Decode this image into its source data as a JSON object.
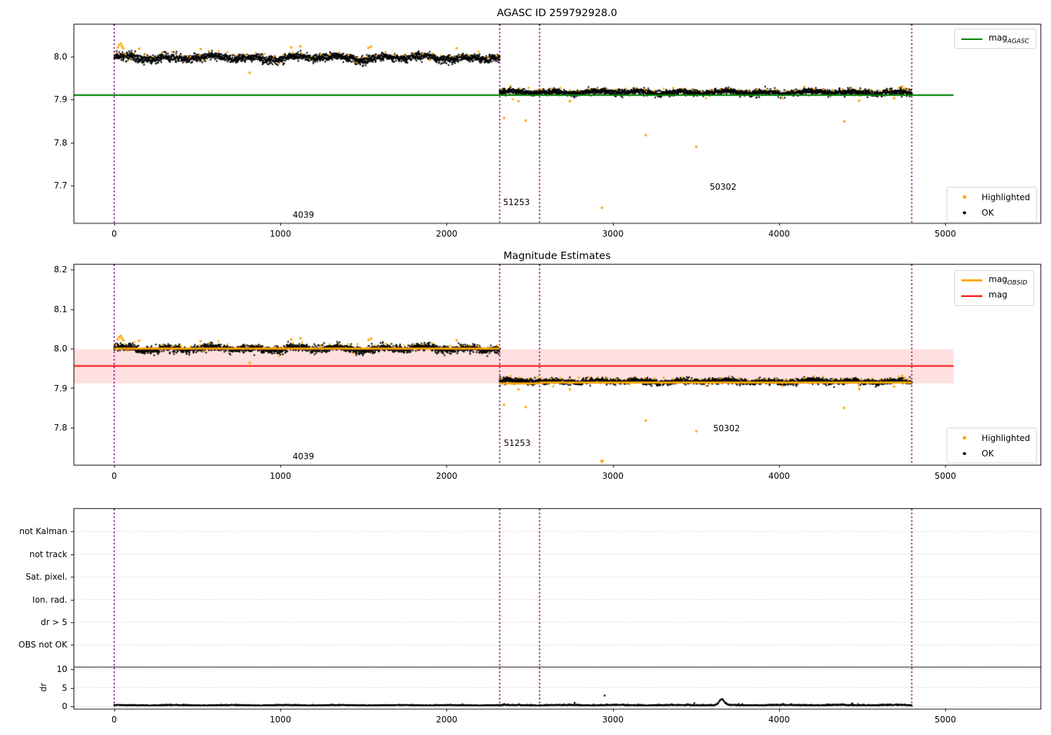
{
  "colors": {
    "ok": "#000000",
    "highlighted": "#ffa500",
    "mag_agasc": "#008000",
    "mag_obsid": "#ffa500",
    "mag": "#ff0000",
    "mag_band": "rgba(255,0,0,0.12)",
    "obs_boundary": "#800080",
    "flag_grid": "#c8c8c8",
    "separator": "#000000",
    "spine": "#000000",
    "text": "#000000"
  },
  "chart_data": [
    {
      "type": "scatter",
      "title": "AGASC ID 259792928.0",
      "xlim": [
        -245,
        5575
      ],
      "ylim": [
        7.613,
        8.076
      ],
      "xticks": [
        0,
        1000,
        2000,
        3000,
        4000,
        5000
      ],
      "yticks": [
        "8.0",
        "7.9",
        "7.8",
        "7.7"
      ],
      "ytick_values": [
        8.0,
        7.9,
        7.8,
        7.7
      ],
      "grid": false,
      "obs_boundaries_x": [
        0,
        2319,
        2559,
        4798
      ],
      "mag_agasc_line": {
        "y": 7.91,
        "x_extent": [
          -245,
          5050
        ]
      },
      "segments": [
        {
          "obsid": "4039",
          "x_range": [
            0,
            2319
          ],
          "mag_mean": 7.997,
          "noise": 0.0045,
          "wiggle": 0.0035,
          "n": 2200,
          "seed": 11
        },
        {
          "obsid": "51253",
          "x_range": [
            2319,
            2559
          ],
          "mag_mean": 7.9165,
          "noise": 0.0035,
          "wiggle": 0.002,
          "n": 235,
          "seed": 22
        },
        {
          "obsid": "50302",
          "x_range": [
            2559,
            4798
          ],
          "mag_mean": 7.9165,
          "noise": 0.0035,
          "wiggle": 0.002,
          "n": 2100,
          "seed": 33
        }
      ],
      "highlighted_outliers": [
        [
          22,
          8.021
        ],
        [
          30,
          8.027
        ],
        [
          40,
          8.03
        ],
        [
          47,
          8.024
        ],
        [
          55,
          8.019
        ],
        [
          150,
          8.018
        ],
        [
          520,
          8.017
        ],
        [
          815,
          7.962
        ],
        [
          1065,
          8.021
        ],
        [
          1120,
          8.024
        ],
        [
          1530,
          8.02
        ],
        [
          1545,
          8.023
        ],
        [
          2060,
          8.019
        ],
        [
          2345,
          7.857
        ],
        [
          2432,
          7.896
        ],
        [
          2476,
          7.851
        ],
        [
          2741,
          7.896
        ],
        [
          2934,
          7.648
        ],
        [
          3198,
          7.817
        ],
        [
          3502,
          7.79
        ],
        [
          4392,
          7.849
        ],
        [
          4482,
          7.897
        ],
        [
          4692,
          7.903
        ],
        [
          4740,
          7.93
        ],
        [
          4756,
          7.925
        ]
      ],
      "annotations": [
        {
          "text": "4039",
          "x": 1138,
          "y": 7.6315
        },
        {
          "text": "51253",
          "x": 2420,
          "y": 7.661
        },
        {
          "text": "50302",
          "x": 3663,
          "y": 7.696
        }
      ],
      "legends": {
        "top_right": [
          {
            "label_main": "mag",
            "label_sub": "AGASC",
            "color": "#008000",
            "type": "line"
          }
        ],
        "bottom_right": [
          {
            "label": "Highlighted",
            "color": "#ffa500",
            "type": "point"
          },
          {
            "label": "OK",
            "color": "#000000",
            "type": "point"
          }
        ]
      }
    },
    {
      "type": "scatter",
      "title": "Magnitude Estimates",
      "xlim": [
        -245,
        5575
      ],
      "ylim": [
        7.706,
        8.214
      ],
      "xticks": [
        0,
        1000,
        2000,
        3000,
        4000,
        5000
      ],
      "yticks": [
        "8.2",
        "8.1",
        "8.0",
        "7.9",
        "7.8"
      ],
      "ytick_values": [
        8.2,
        8.1,
        8.0,
        7.9,
        7.8
      ],
      "grid": false,
      "obs_boundaries_x": [
        0,
        2319,
        2559,
        4798
      ],
      "mag_line": {
        "y": 7.956,
        "band": [
          7.912,
          7.999
        ],
        "x_extent": [
          -245,
          5050
        ]
      },
      "mag_obsid_lines": [
        {
          "obsid": "4039",
          "x_range": [
            0,
            2319
          ],
          "mag": 8.0
        },
        {
          "obsid": "51253",
          "x_range": [
            2319,
            2559
          ],
          "mag": 7.912
        },
        {
          "obsid": "50302",
          "x_range": [
            2559,
            4798
          ],
          "mag": 7.914
        }
      ],
      "segments": [
        {
          "obsid": "4039",
          "x_range": [
            0,
            2319
          ],
          "mag_mean": 8.0,
          "noise": 0.0045,
          "wiggle": 0.0035,
          "n": 2200,
          "seed": 55
        },
        {
          "obsid": "51253",
          "x_range": [
            2319,
            2559
          ],
          "mag_mean": 7.917,
          "noise": 0.0035,
          "wiggle": 0.002,
          "n": 235,
          "seed": 66
        },
        {
          "obsid": "50302",
          "x_range": [
            2559,
            4798
          ],
          "mag_mean": 7.917,
          "noise": 0.0035,
          "wiggle": 0.002,
          "n": 2100,
          "seed": 77
        }
      ],
      "highlighted_outliers": [
        [
          22,
          8.023
        ],
        [
          30,
          8.029
        ],
        [
          40,
          8.032
        ],
        [
          47,
          8.026
        ],
        [
          55,
          8.021
        ],
        [
          150,
          8.02
        ],
        [
          520,
          8.019
        ],
        [
          815,
          7.964
        ],
        [
          1065,
          8.023
        ],
        [
          1120,
          8.026
        ],
        [
          1530,
          8.022
        ],
        [
          1545,
          8.025
        ],
        [
          2060,
          8.021
        ],
        [
          2345,
          7.858
        ],
        [
          2432,
          7.897
        ],
        [
          2476,
          7.852
        ],
        [
          2741,
          7.897
        ],
        [
          2934,
          7.648
        ],
        [
          3198,
          7.818
        ],
        [
          3502,
          7.791
        ],
        [
          4392,
          7.85
        ],
        [
          4482,
          7.898
        ],
        [
          4692,
          7.904
        ],
        [
          4740,
          7.931
        ],
        [
          4756,
          7.926
        ]
      ],
      "annotations": [
        {
          "text": "4039",
          "x": 1138,
          "y": 7.7275
        },
        {
          "text": "51253",
          "x": 2424,
          "y": 7.761
        },
        {
          "text": "50302",
          "x": 3684,
          "y": 7.799
        }
      ],
      "legends": {
        "top_right": [
          {
            "label_main": "mag",
            "label_sub": "OBSID",
            "color": "#ffa500",
            "type": "line"
          },
          {
            "label_main": "mag",
            "label_sub": "",
            "color": "#ff0000",
            "type": "line"
          }
        ],
        "bottom_right": [
          {
            "label": "Highlighted",
            "color": "#ffa500",
            "type": "point"
          },
          {
            "label": "OK",
            "color": "#000000",
            "type": "point"
          }
        ]
      }
    },
    {
      "type": "flags_dr",
      "flag_categories": [
        "not Kalman",
        "not track",
        "Sat. pixel.",
        "Ion. rad.",
        "dr > 5",
        "OBS not OK"
      ],
      "flag_points": [],
      "xticks": [
        0,
        1000,
        2000,
        3000,
        4000,
        5000
      ],
      "obs_boundaries_x": [
        0,
        2319,
        2559,
        4798
      ],
      "dr": {
        "ylabel": "dr",
        "ticks": [
          0,
          5,
          10
        ],
        "x_range": [
          0,
          4798
        ],
        "baseline": 0.22,
        "noise_obs1": 0.09,
        "noise_obs2": 0.13,
        "wiggle": 0.05,
        "bump": {
          "x": 3655,
          "amp": 1.55,
          "sigma": 22
        },
        "outliers": [
          [
            2770,
            0.95
          ],
          [
            2950,
            2.9
          ],
          [
            3490,
            0.85
          ],
          [
            4440,
            0.8
          ]
        ],
        "n": 2300,
        "seed": 44
      }
    }
  ]
}
